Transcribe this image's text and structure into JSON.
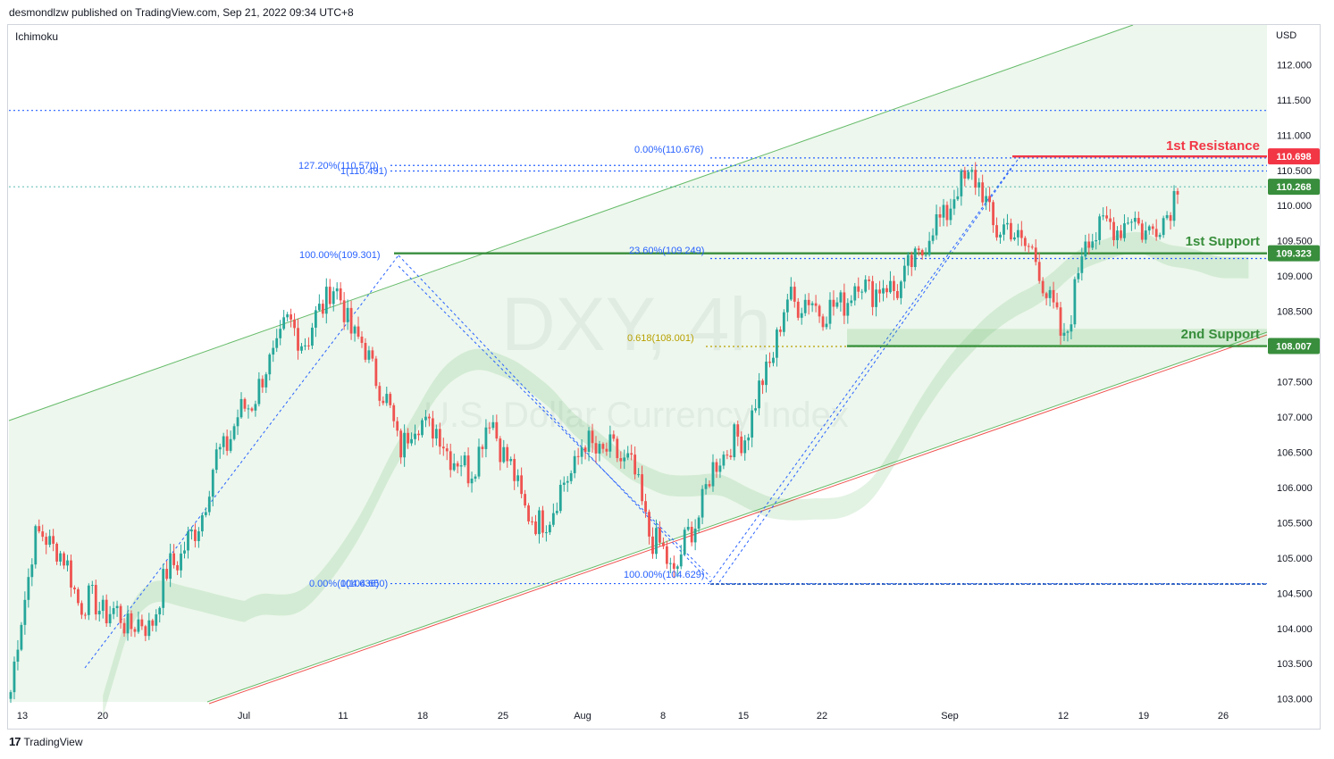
{
  "header": {
    "published_by": "desmondlzw published on TradingView.com, Sep 21, 2022 09:34 UTC+8"
  },
  "indicator": {
    "name": "Ichimoku"
  },
  "currency": "USD",
  "footer": {
    "brand": "TradingView",
    "logo_text": "17"
  },
  "watermark": {
    "symbol": "DXY, 4h",
    "name": "U.S. Dollar Currency Index"
  },
  "colors": {
    "up": "#26a69a",
    "down": "#ef5350",
    "resistance": "#f23645",
    "support": "#388e3c",
    "fib": "#2962ff",
    "golden": "#b8a000",
    "channel": "#66bb6a",
    "channel_lower_red": "#ef5350"
  },
  "chart_data": {
    "type": "candlestick",
    "symbol": "DXY",
    "timeframe": "4h",
    "ylim": [
      102.9,
      112.4
    ],
    "yticks": [
      "112.000",
      "111.500",
      "111.000",
      "110.500",
      "110.000",
      "109.500",
      "109.000",
      "108.500",
      "108.000",
      "107.500",
      "107.000",
      "106.500",
      "106.000",
      "105.500",
      "105.000",
      "104.500",
      "104.000",
      "103.500",
      "103.000"
    ],
    "xticks": [
      "13",
      "20",
      "Jul",
      "11",
      "18",
      "25",
      "Aug",
      "8",
      "15",
      "22",
      "Sep",
      "12",
      "19",
      "26"
    ],
    "close_path": [
      {
        "t": "13",
        "v": 103.1
      },
      {
        "t": "15",
        "v": 105.3
      },
      {
        "t": "17",
        "v": 105.2
      },
      {
        "t": "20",
        "v": 104.4
      },
      {
        "t": "22",
        "v": 104.3
      },
      {
        "t": "24",
        "v": 104.1
      },
      {
        "t": "27",
        "v": 104.0
      },
      {
        "t": "Jul",
        "v": 104.9
      },
      {
        "t": "5",
        "v": 105.3
      },
      {
        "t": "6",
        "v": 106.4
      },
      {
        "t": "7",
        "v": 107.0
      },
      {
        "t": "11",
        "v": 107.5
      },
      {
        "t": "12",
        "v": 108.3
      },
      {
        "t": "13",
        "v": 108.1
      },
      {
        "t": "14",
        "v": 108.9
      },
      {
        "t": "15",
        "v": 108.2
      },
      {
        "t": "18",
        "v": 107.6
      },
      {
        "t": "19",
        "v": 106.6
      },
      {
        "t": "21",
        "v": 107.0
      },
      {
        "t": "25",
        "v": 106.6
      },
      {
        "t": "27",
        "v": 106.2
      },
      {
        "t": "28",
        "v": 107.0
      },
      {
        "t": "29",
        "v": 106.1
      },
      {
        "t": "Aug",
        "v": 105.4
      },
      {
        "t": "2",
        "v": 105.9
      },
      {
        "t": "4",
        "v": 106.6
      },
      {
        "t": "5",
        "v": 106.5
      },
      {
        "t": "8",
        "v": 106.4
      },
      {
        "t": "10",
        "v": 105.3
      },
      {
        "t": "11",
        "v": 104.8
      },
      {
        "t": "12",
        "v": 105.6
      },
      {
        "t": "15",
        "v": 106.5
      },
      {
        "t": "17",
        "v": 106.7
      },
      {
        "t": "19",
        "v": 107.6
      },
      {
        "t": "22",
        "v": 108.7
      },
      {
        "t": "23",
        "v": 108.6
      },
      {
        "t": "25",
        "v": 108.5
      },
      {
        "t": "26",
        "v": 108.9
      },
      {
        "t": "29",
        "v": 108.8
      },
      {
        "t": "30",
        "v": 108.9
      },
      {
        "t": "Sep",
        "v": 109.5
      },
      {
        "t": "5",
        "v": 110.0
      },
      {
        "t": "6",
        "v": 110.5
      },
      {
        "t": "7",
        "v": 109.7
      },
      {
        "t": "8",
        "v": 109.6
      },
      {
        "t": "9",
        "v": 109.1
      },
      {
        "t": "12",
        "v": 108.0
      },
      {
        "t": "13",
        "v": 109.6
      },
      {
        "t": "14",
        "v": 109.7
      },
      {
        "t": "16",
        "v": 109.8
      },
      {
        "t": "19",
        "v": 109.6
      },
      {
        "t": "20",
        "v": 110.268
      }
    ],
    "levels": [
      {
        "name": "1st Resistance",
        "value": 110.698,
        "label": "110.698"
      },
      {
        "name": "",
        "value": 110.268,
        "label": "110.268"
      },
      {
        "name": "1st Support",
        "value": 109.323,
        "label": "109.323"
      },
      {
        "name": "2nd Support",
        "value": 108.007,
        "label": "108.007"
      }
    ],
    "fib_labels": [
      {
        "text": "100.00%(109.301)",
        "value": 109.301
      },
      {
        "text": "127.20%(110.570)",
        "value": 110.57
      },
      {
        "text": "1(110.491)",
        "value": 110.491
      },
      {
        "text": "0.00%(110.676)",
        "value": 110.676
      },
      {
        "text": "23.60%(109.249)",
        "value": 109.249
      },
      {
        "text": "0.618(108.001)",
        "value": 108.001
      },
      {
        "text": "100.00%(104.629)",
        "value": 104.629
      },
      {
        "text": "0.00%(104.636)",
        "value": 104.636
      },
      {
        "text": "0(104.650)",
        "value": 104.65
      }
    ]
  }
}
